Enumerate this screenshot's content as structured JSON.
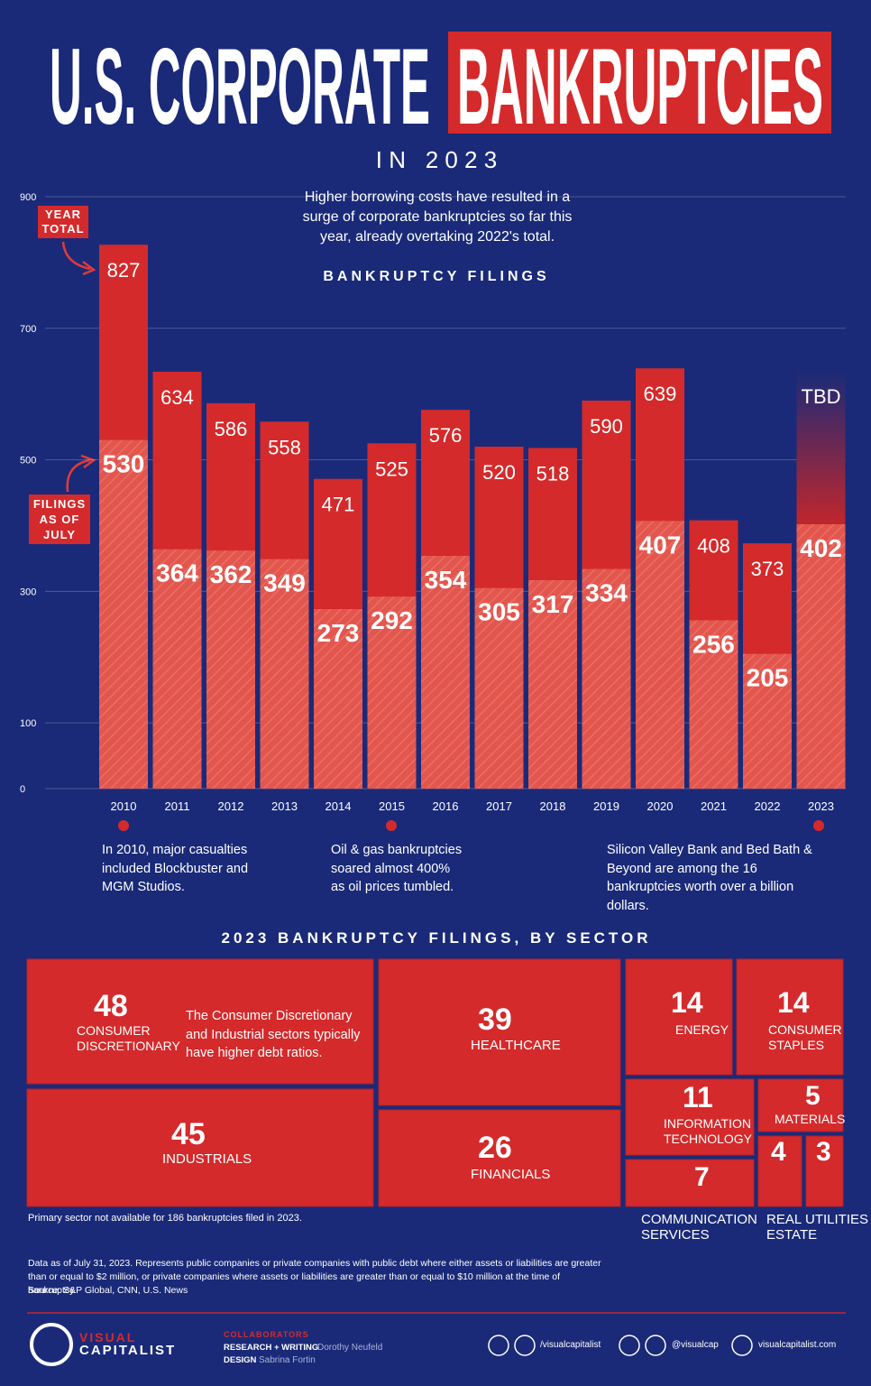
{
  "header": {
    "title_part1": "U.S. CORPORATE",
    "title_part2": "BANKRUPTCIES",
    "subtitle": "I N   2 0 2 3"
  },
  "chart_data": {
    "type": "bar",
    "title": "BANKRUPTCY FILINGS",
    "description": "Higher borrowing costs have resulted in a surge of corporate bankruptcies so far this year, already overtaking 2022's total.",
    "categories": [
      "2010",
      "2011",
      "2012",
      "2013",
      "2014",
      "2015",
      "2016",
      "2017",
      "2018",
      "2019",
      "2020",
      "2021",
      "2022",
      "2023"
    ],
    "series": [
      {
        "name": "YEAR TOTAL",
        "color": "#d42a2b",
        "values": [
          827,
          634,
          586,
          558,
          471,
          525,
          576,
          520,
          518,
          590,
          639,
          408,
          373,
          null
        ]
      },
      {
        "name": "FILINGS AS OF JULY",
        "color": "#e2564e",
        "values": [
          530,
          364,
          362,
          349,
          273,
          292,
          354,
          305,
          317,
          334,
          407,
          256,
          205,
          402
        ]
      }
    ],
    "pending_label": "TBD",
    "ylim": [
      0,
      900
    ],
    "yticks": [
      0,
      100,
      300,
      500,
      700,
      900
    ],
    "grid": true,
    "annotations": [
      "In 2010, major casualties included Blockbuster and MGM Studios.",
      "Oil & gas bankruptcies soared almost 400% as oil prices tumbled.",
      "Silicon Valley Bank and Bed Bath & Beyond are among the 16 bankruptcies worth over a billion dollars."
    ]
  },
  "sector_chart": {
    "type": "treemap",
    "title": "2023 BANKRUPTCY FILINGS, BY SECTOR",
    "color": "#d42a2b",
    "sectors": [
      {
        "name": "CONSUMER DISCRETIONARY",
        "value": 48
      },
      {
        "name": "INDUSTRIALS",
        "value": 45
      },
      {
        "name": "HEALTHCARE",
        "value": 39
      },
      {
        "name": "FINANCIALS",
        "value": 26
      },
      {
        "name": "ENERGY",
        "value": 14
      },
      {
        "name": "CONSUMER STAPLES",
        "value": 14
      },
      {
        "name": "INFORMATION TECHNOLOGY",
        "value": 11
      },
      {
        "name": "MATERIALS",
        "value": 5
      },
      {
        "name": "COMMUNICATION SERVICES",
        "value": 7
      },
      {
        "name": "REAL ESTATE",
        "value": 4
      },
      {
        "name": "UTILITIES",
        "value": 3
      }
    ],
    "note": "The Consumer Discretionary and Industrial sectors typically have higher debt ratios.",
    "footnote": "Primary sector not available for 186 bankruptcies filed in 2023."
  },
  "source": {
    "text": "Data as of July 31, 2023. Represents public companies or private companies with public debt where either assets or liabilities are greater than or equal to $2 million, or private companies where assets or liabilities are greater than or equal to $10 million at the time of bankruptcy.",
    "line": "Source: S&P Global, CNN, U.S. News"
  },
  "footer": {
    "brand1": "VISUAL",
    "brand2": "CAPITALIST",
    "collaborators": "COLLABORATORS",
    "research_role": "RESEARCH + WRITING",
    "research_name": "Dorothy Neufeld",
    "design_role": "DESIGN",
    "design_name": "Sabrina Fortin",
    "handle1": "/visualcapitalist",
    "handle2": "@visualcap",
    "website": "visualcapitalist.com"
  }
}
